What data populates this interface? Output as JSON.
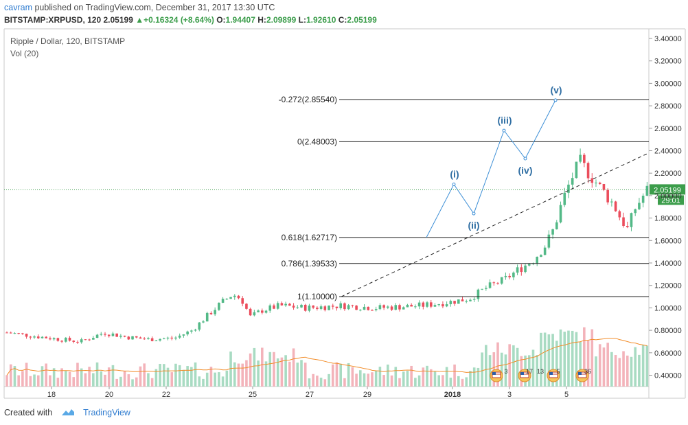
{
  "header": {
    "user": "cavram",
    "published_text": "published on TradingView.com, December 31, 2017 13:30 UTC",
    "symbol": "BITSTAMP:XRPUSD, 120",
    "last": "2.05199",
    "change": "▲+0.16324 (+8.64%)",
    "o_label": "O:",
    "o_value": "1.94407",
    "h_label": "H:",
    "h_value": "2.09899",
    "l_label": "L:",
    "l_value": "1.92610",
    "c_label": "C:",
    "c_value": "2.05199"
  },
  "legend": {
    "title": "Ripple / Dollar, 120, BITSTAMP",
    "vol": "Vol (20)"
  },
  "footer": {
    "created_with": "Created with",
    "brand": "TradingView"
  },
  "colors": {
    "up": "#53b987",
    "down": "#eb4d5c",
    "vol_up": "#a8dbc2",
    "vol_down": "#f3b3ba",
    "wave_line": "#3d8fd6",
    "wave_label": "#2f6ea3",
    "price_tag": "#3c9d4b",
    "vol_ma": "#f28c28"
  },
  "chart_data": {
    "type": "candlestick",
    "symbol": "XRPUSD",
    "interval": "120",
    "y_axis": {
      "ticks": [
        "3.40000",
        "3.20000",
        "3.00000",
        "2.80000",
        "2.60000",
        "2.40000",
        "2.20000",
        "2.00000",
        "1.80000",
        "1.60000",
        "1.40000",
        "1.20000",
        "1.00000",
        "0.80000",
        "0.60000",
        "0.40000"
      ],
      "range": [
        0.3,
        3.42
      ]
    },
    "x_axis": {
      "ticks": [
        "18",
        "20",
        "22",
        "25",
        "27",
        "29",
        "2018",
        "3",
        "5"
      ]
    },
    "last_price_tag": "2.05199",
    "countdown_tag": "29:01",
    "fib_levels": [
      {
        "label": "-0.272(2.85540)",
        "value": 2.8554
      },
      {
        "label": "0(2.48003)",
        "value": 2.48003
      },
      {
        "label": "0.618(1.62717)",
        "value": 1.62717
      },
      {
        "label": "0.786(1.39533)",
        "value": 1.39533
      },
      {
        "label": "1(1.10000)",
        "value": 1.1
      }
    ],
    "wave_labels": [
      {
        "label": "(i)",
        "value": 2.1
      },
      {
        "label": "(ii)",
        "value": 1.84
      },
      {
        "label": "(iii)",
        "value": 2.58
      },
      {
        "label": "(iv)",
        "value": 2.33
      },
      {
        "label": "(v)",
        "value": 2.85
      }
    ],
    "events": [
      "3",
      "17",
      "13",
      "5",
      "36"
    ]
  }
}
